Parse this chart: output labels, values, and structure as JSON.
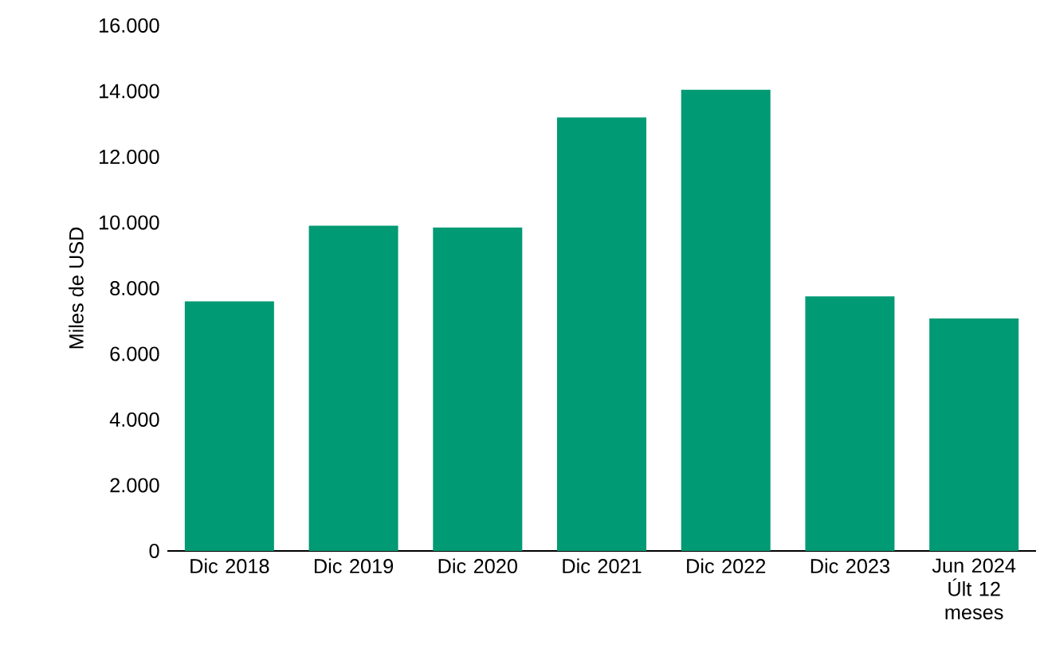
{
  "chart_data": {
    "type": "bar",
    "ylabel": "Miles de USD",
    "categories": [
      "Dic 2018",
      "Dic 2019",
      "Dic 2020",
      "Dic 2021",
      "Dic 2022",
      "Dic 2023",
      "Jun 2024 Últ 12 meses"
    ],
    "values": [
      7600,
      9900,
      9850,
      13200,
      14050,
      7750,
      7080
    ],
    "color": "#009a74",
    "ylim": [
      0,
      16000
    ],
    "yticks": [
      {
        "value": 0,
        "label": "0"
      },
      {
        "value": 2000,
        "label": "2.000"
      },
      {
        "value": 4000,
        "label": "4.000"
      },
      {
        "value": 6000,
        "label": "6.000"
      },
      {
        "value": 8000,
        "label": "8.000"
      },
      {
        "value": 10000,
        "label": "10.000"
      },
      {
        "value": 12000,
        "label": "12.000"
      },
      {
        "value": 14000,
        "label": "14.000"
      },
      {
        "value": 16000,
        "label": "16.000"
      }
    ],
    "grid": false
  }
}
